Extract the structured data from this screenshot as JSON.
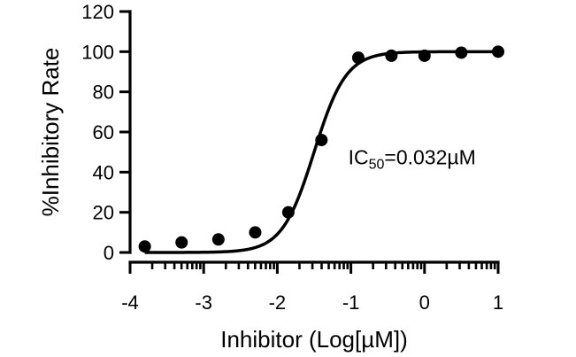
{
  "chart_data": {
    "type": "scatter",
    "title": "",
    "xlabel": "Inhibitor (Log[µM])",
    "ylabel": "%Inhibitory Rate",
    "xlim": [
      -4,
      1
    ],
    "ylim": [
      0,
      120
    ],
    "x_ticks": [
      -4,
      -3,
      -2,
      -1,
      0,
      1
    ],
    "x_tick_labels": [
      "-4",
      "-3",
      "-2",
      "-1",
      "0",
      "1"
    ],
    "y_ticks": [
      0,
      20,
      40,
      60,
      80,
      100,
      120
    ],
    "y_tick_labels": [
      "0",
      "20",
      "40",
      "60",
      "80",
      "100",
      "120"
    ],
    "grid": false,
    "series": [
      {
        "points": [
          {
            "x": -3.8,
            "y": 3
          },
          {
            "x": -3.3,
            "y": 5
          },
          {
            "x": -2.8,
            "y": 6.5
          },
          {
            "x": -2.3,
            "y": 10
          },
          {
            "x": -1.85,
            "y": 20
          },
          {
            "x": -1.4,
            "y": 56
          },
          {
            "x": -0.9,
            "y": 97
          },
          {
            "x": -0.45,
            "y": 98
          },
          {
            "x": 0.0,
            "y": 98
          },
          {
            "x": 0.5,
            "y": 99.5
          },
          {
            "x": 1.0,
            "y": 100
          }
        ]
      }
    ],
    "fit": {
      "model": "four-parameter logistic",
      "bottom": 0,
      "top": 100,
      "log_ic50": -1.5,
      "hill_slope": 2.0
    },
    "annotation": {
      "base": "IC",
      "subscript": "50",
      "rest": "=0.032µM",
      "x": -1.0,
      "y": 44
    }
  }
}
